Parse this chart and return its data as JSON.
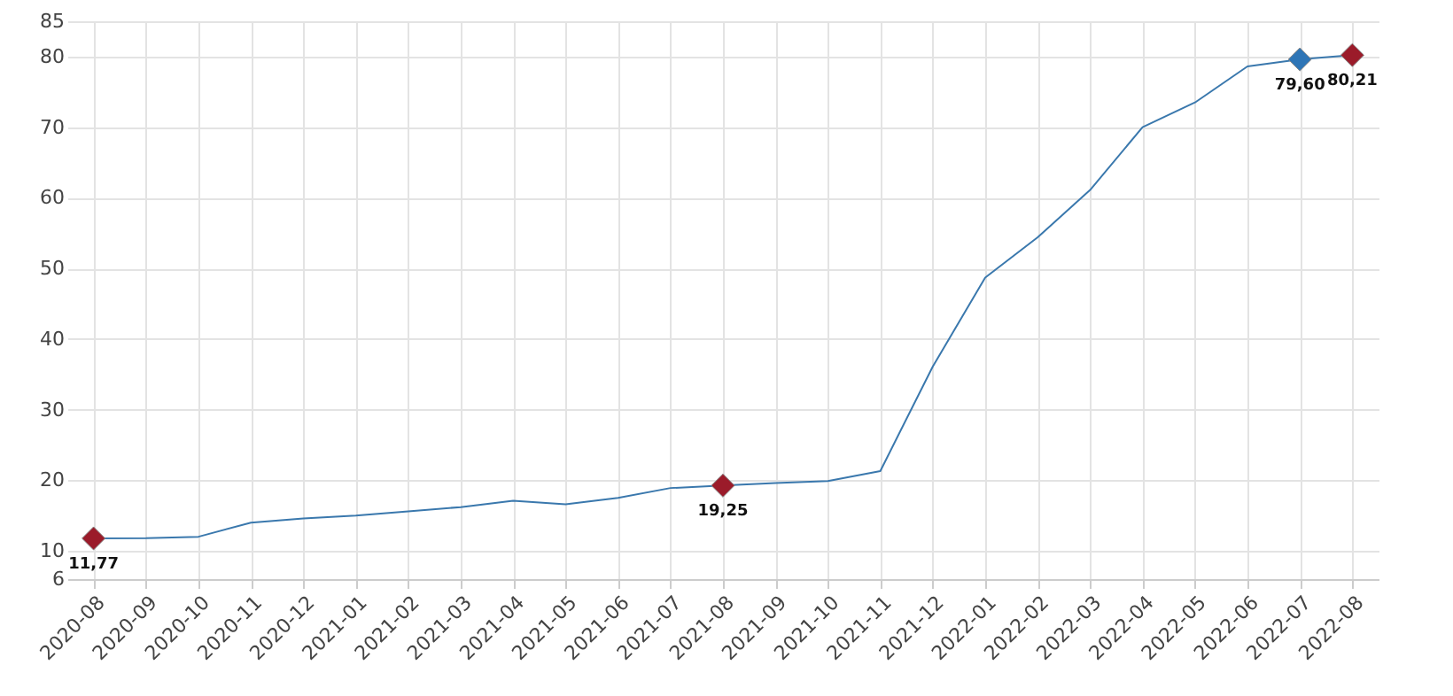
{
  "chart_data": {
    "type": "line",
    "categories": [
      "2020-08",
      "2020-09",
      "2020-10",
      "2020-11",
      "2020-12",
      "2021-01",
      "2021-02",
      "2021-03",
      "2021-04",
      "2021-05",
      "2021-06",
      "2021-07",
      "2021-08",
      "2021-09",
      "2021-10",
      "2021-11",
      "2021-12",
      "2022-01",
      "2022-02",
      "2022-03",
      "2022-04",
      "2022-05",
      "2022-06",
      "2022-07",
      "2022-08"
    ],
    "series": [
      {
        "color": "#3a78ad",
        "marker": "none",
        "values": [
          11.77,
          11.8,
          12.0,
          14.0,
          14.6,
          15.0,
          15.6,
          16.2,
          17.1,
          16.6,
          17.5,
          18.9,
          19.25,
          19.6,
          19.9,
          21.3,
          36.1,
          48.7,
          54.4,
          61.1,
          70.0,
          73.5,
          78.6,
          79.6,
          80.21
        ]
      },
      {
        "type": "scatter",
        "marker": "diamond",
        "values": [
          11.77,
          null,
          null,
          null,
          null,
          null,
          null,
          null,
          null,
          null,
          null,
          null,
          19.25,
          null,
          null,
          null,
          null,
          null,
          null,
          null,
          null,
          null,
          null,
          79.6,
          80.21
        ],
        "colors": [
          "#9b1b2a",
          null,
          null,
          null,
          null,
          null,
          null,
          null,
          null,
          null,
          null,
          null,
          "#9b1b2a",
          null,
          null,
          null,
          null,
          null,
          null,
          null,
          null,
          null,
          null,
          "#2e75b6",
          "#9b1b2a"
        ],
        "value_labels": [
          "11,77",
          null,
          null,
          null,
          null,
          null,
          null,
          null,
          null,
          null,
          null,
          null,
          "19,25",
          null,
          null,
          null,
          null,
          null,
          null,
          null,
          null,
          null,
          null,
          "79,60",
          "80,21"
        ]
      }
    ],
    "ylim": [
      6,
      85
    ],
    "yticks": [
      6,
      10,
      20,
      30,
      40,
      50,
      60,
      70,
      80,
      85
    ],
    "grid": true
  }
}
